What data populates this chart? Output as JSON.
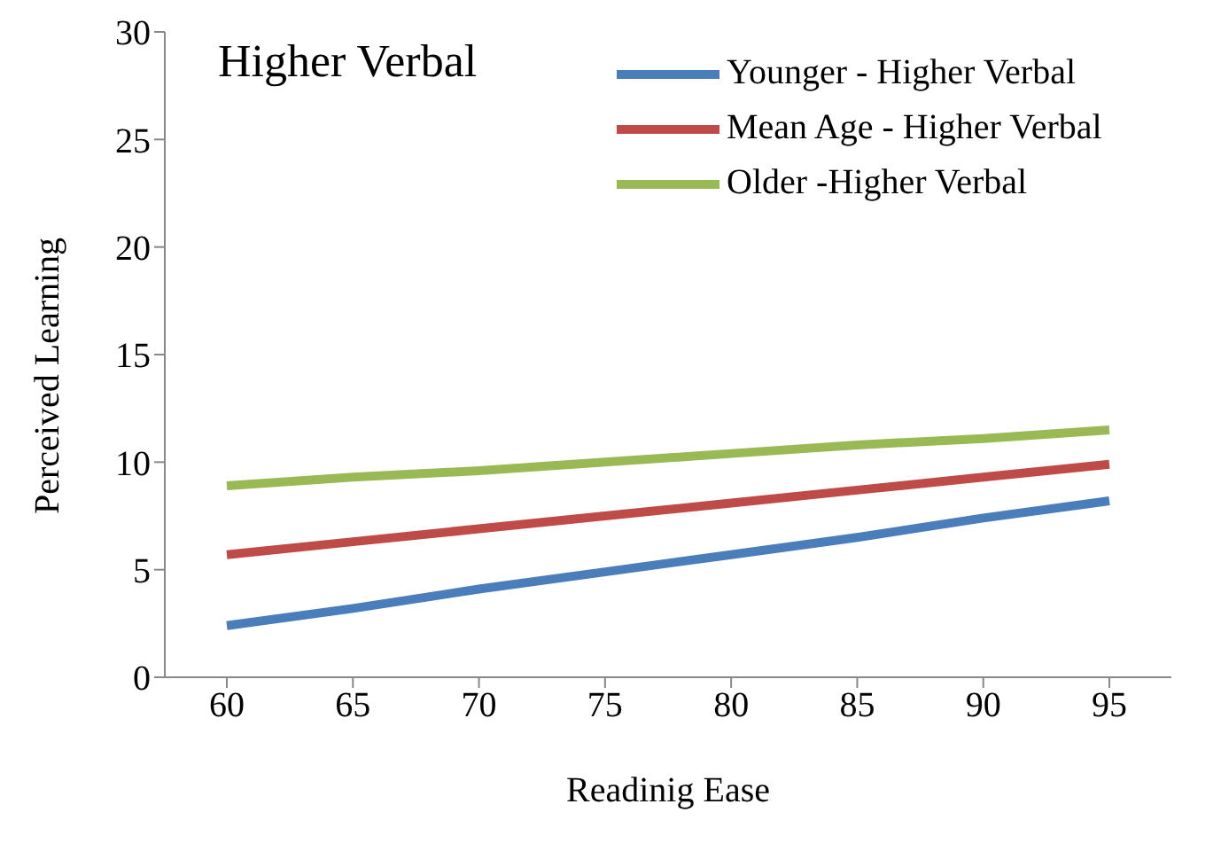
{
  "chart_data": {
    "type": "line",
    "title": "Higher Verbal",
    "xlabel": "Readinig Ease",
    "ylabel": "Perceived Learning",
    "categories": [
      "60",
      "65",
      "70",
      "75",
      "80",
      "85",
      "90",
      "95"
    ],
    "series": [
      {
        "name": "Younger - Higher Verbal",
        "color": "#4a7ebb",
        "values": [
          2.4,
          3.2,
          4.1,
          4.9,
          5.7,
          6.5,
          7.4,
          8.2
        ]
      },
      {
        "name": "Mean Age - Higher Verbal",
        "color": "#be4b48",
        "values": [
          5.7,
          6.3,
          6.9,
          7.5,
          8.1,
          8.7,
          9.3,
          9.9
        ]
      },
      {
        "name": "Older -Higher Verbal",
        "color": "#98b954",
        "values": [
          8.9,
          9.3,
          9.6,
          10.0,
          10.4,
          10.8,
          11.1,
          11.5
        ]
      }
    ],
    "ylim": [
      0,
      30
    ],
    "yticks": [
      0,
      5,
      10,
      15,
      20,
      25,
      30
    ],
    "grid": false,
    "legend": "top right",
    "marker": "none",
    "line_style": "solid"
  }
}
